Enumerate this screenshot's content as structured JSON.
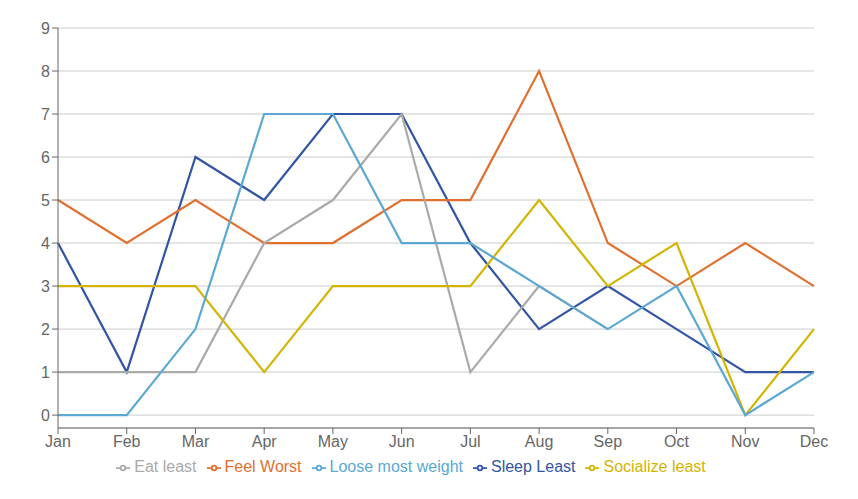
{
  "chart_data": {
    "type": "line",
    "categories": [
      "Jan",
      "Feb",
      "Mar",
      "Apr",
      "May",
      "Jun",
      "Jul",
      "Aug",
      "Sep",
      "Oct",
      "Nov",
      "Dec"
    ],
    "series": [
      {
        "name": "Sleep Least",
        "color": "#3155A4",
        "values": [
          4,
          1,
          6,
          5,
          7,
          7,
          4,
          2,
          3,
          2,
          1,
          1
        ]
      },
      {
        "name": "Feel Worst",
        "color": "#E07030",
        "values": [
          5,
          4,
          5,
          4,
          4,
          5,
          5,
          8,
          4,
          3,
          4,
          3
        ]
      },
      {
        "name": "Eat least",
        "color": "#AAAAAA",
        "values": [
          1,
          1,
          1,
          4,
          5,
          7,
          1,
          3,
          2,
          null,
          null,
          null
        ]
      },
      {
        "name": "Socialize least",
        "color": "#D4B400",
        "values": [
          3,
          3,
          3,
          1,
          3,
          3,
          3,
          5,
          3,
          4,
          0,
          2
        ]
      },
      {
        "name": "Loose most weight",
        "color": "#5BA8D4",
        "values": [
          0,
          0,
          2,
          7,
          7,
          4,
          4,
          3,
          2,
          3,
          0,
          1
        ]
      }
    ],
    "ylim": [
      -0.3,
      9
    ],
    "yticks": [
      0,
      1,
      2,
      3,
      4,
      5,
      6,
      7,
      8,
      9
    ],
    "grid": true,
    "legend": "bottom"
  }
}
